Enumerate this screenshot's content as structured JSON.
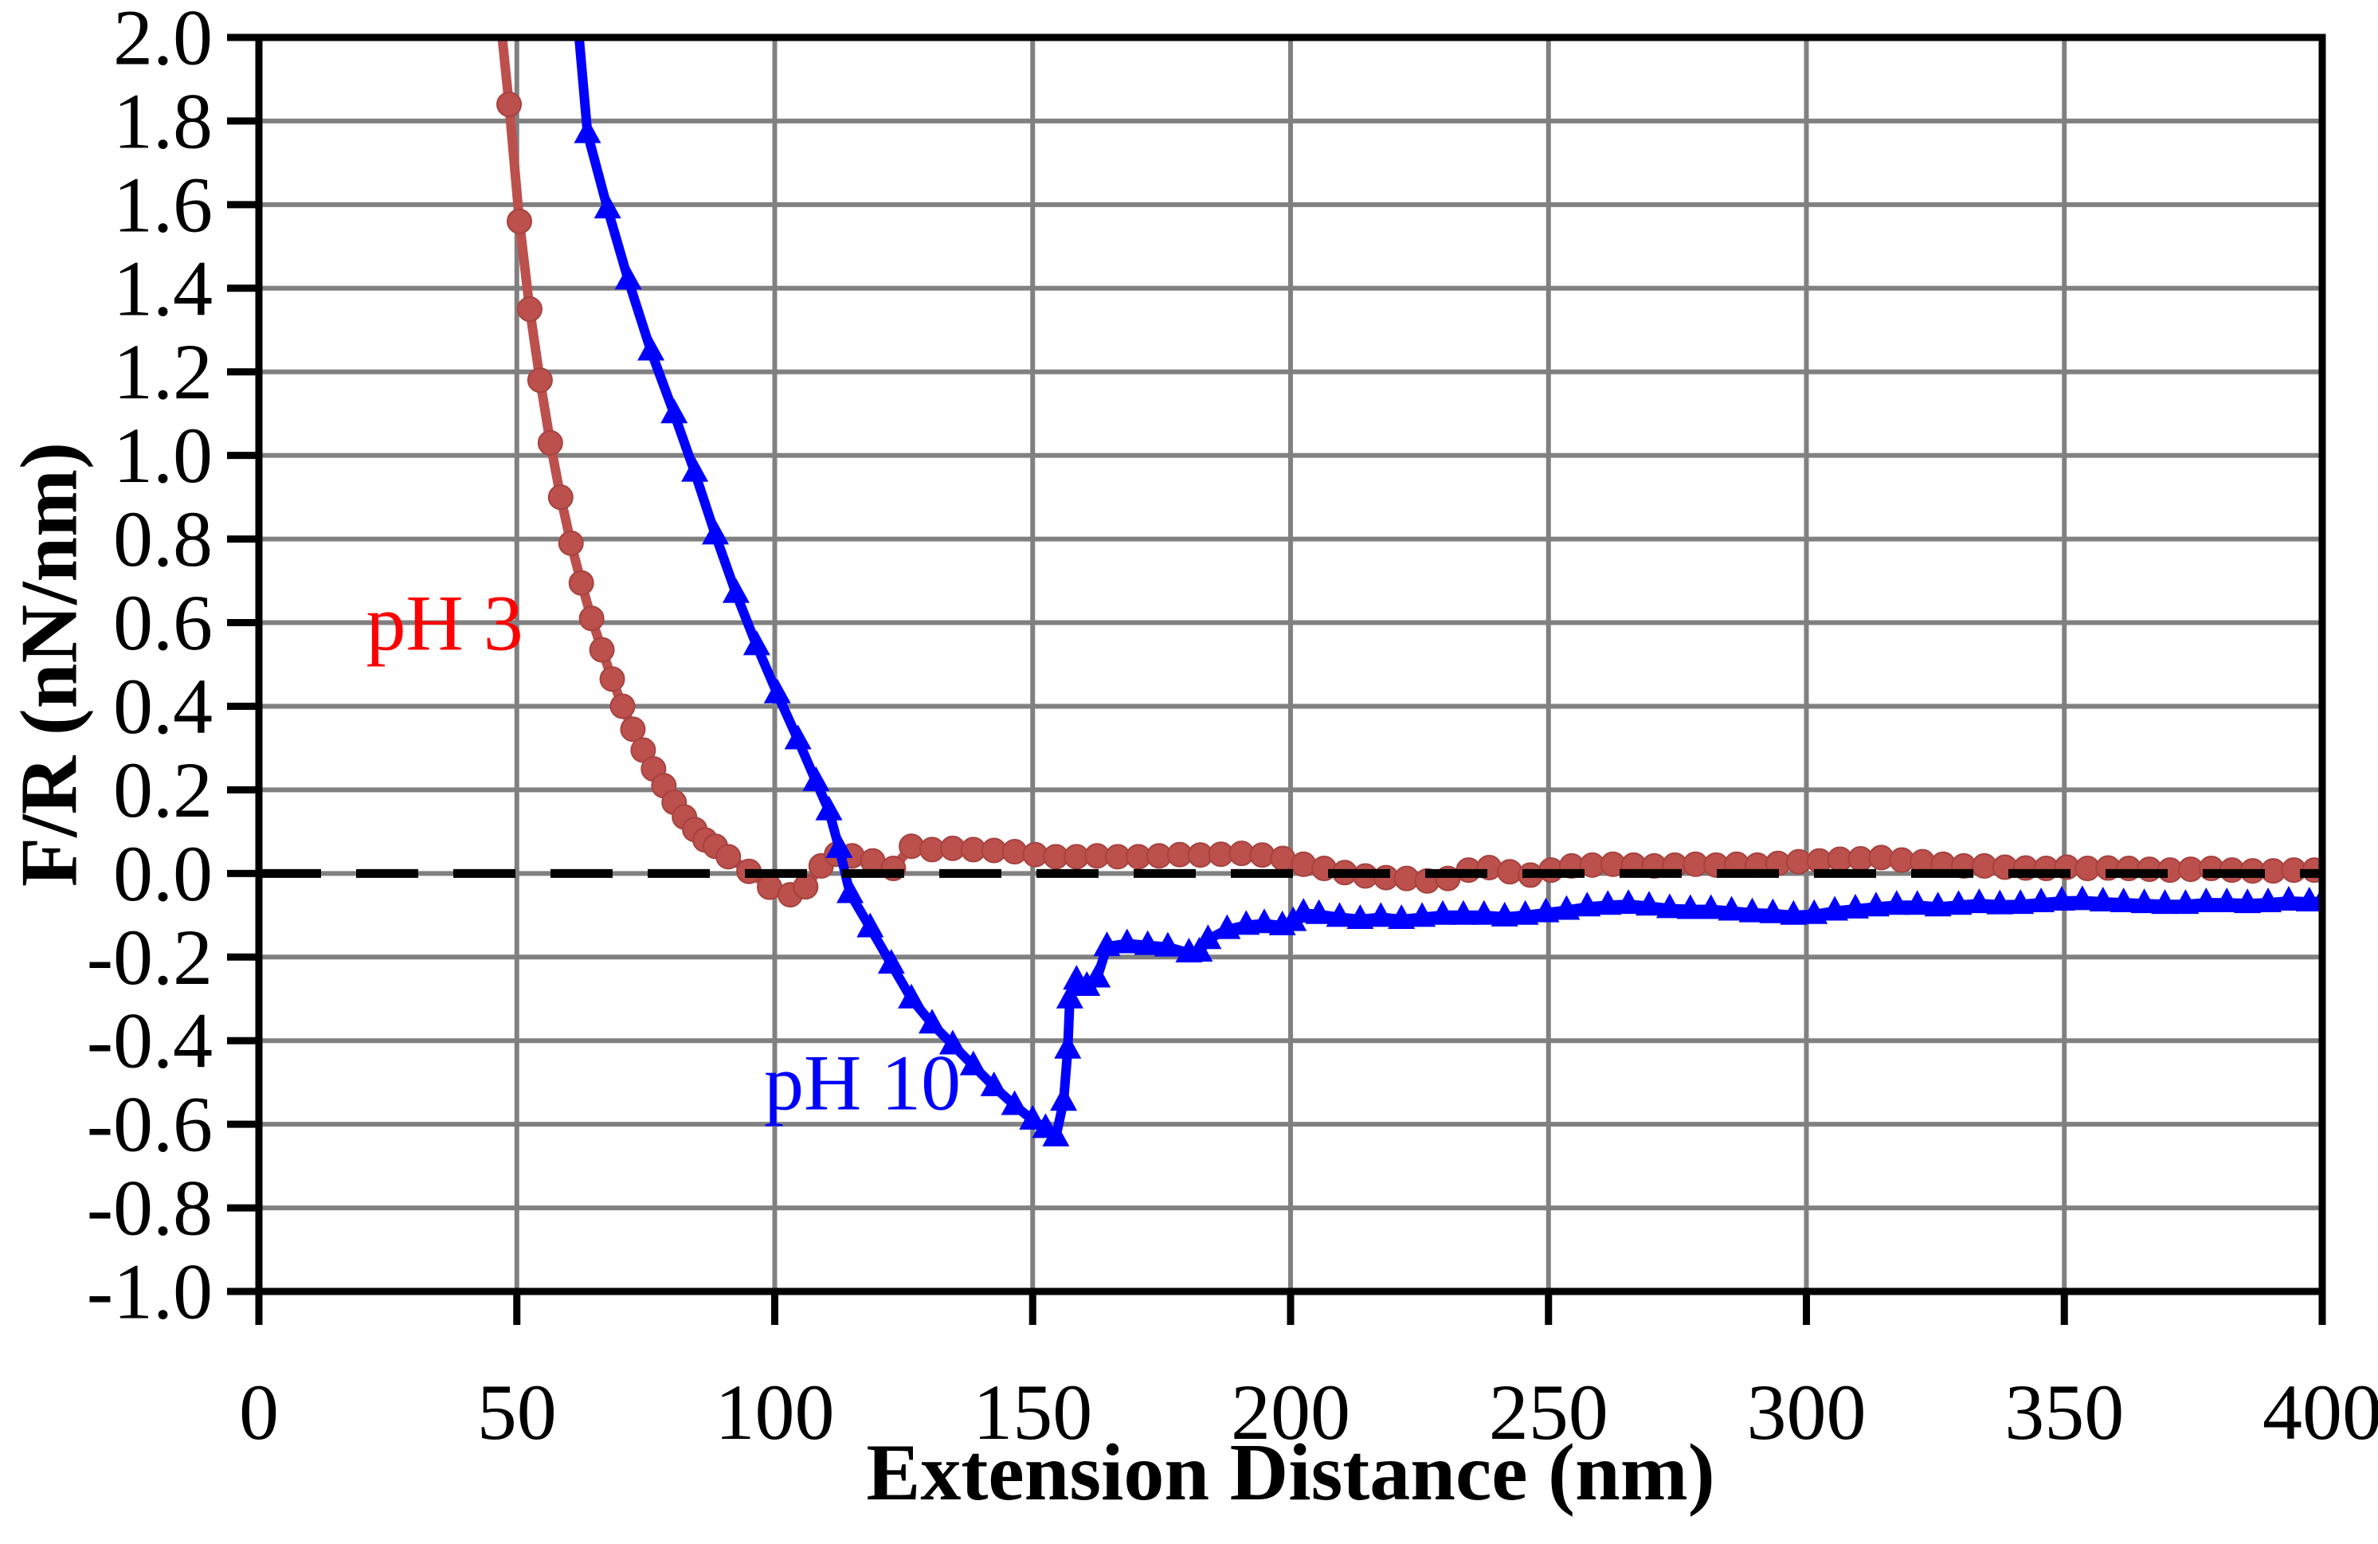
{
  "figure": {
    "background": "#FFFFFF",
    "plot_border_color": "#000000",
    "gridline_color": "#808080"
  },
  "chart_data": {
    "type": "line",
    "title": "",
    "xlabel": "Extension Distance (nm)",
    "ylabel": "F/R (nN/nm)",
    "xlim": [
      0,
      400
    ],
    "ylim": [
      -1.0,
      2.0
    ],
    "grid": true,
    "legend_position": "none",
    "zero_line": {
      "y": 0.0,
      "style": "dashed",
      "color": "#000000"
    },
    "xticks": [
      {
        "v": 0,
        "label": "0"
      },
      {
        "v": 50,
        "label": "50"
      },
      {
        "v": 100,
        "label": "100"
      },
      {
        "v": 150,
        "label": "150"
      },
      {
        "v": 200,
        "label": "200"
      },
      {
        "v": 250,
        "label": "250"
      },
      {
        "v": 300,
        "label": "300"
      },
      {
        "v": 350,
        "label": "350"
      },
      {
        "v": 400,
        "label": "400"
      }
    ],
    "yticks": [
      {
        "v": 2.0,
        "label": "2.0"
      },
      {
        "v": 1.8,
        "label": "1.8"
      },
      {
        "v": 1.6,
        "label": "1.6"
      },
      {
        "v": 1.4,
        "label": "1.4"
      },
      {
        "v": 1.2,
        "label": "1.2"
      },
      {
        "v": 1.0,
        "label": "1.0"
      },
      {
        "v": 0.8,
        "label": "0.8"
      },
      {
        "v": 0.6,
        "label": "0.6"
      },
      {
        "v": 0.4,
        "label": "0.4"
      },
      {
        "v": 0.2,
        "label": "0.2"
      },
      {
        "v": 0.0,
        "label": "0.0"
      },
      {
        "v": -0.2,
        "label": "-0.2"
      },
      {
        "v": -0.4,
        "label": "-0.4"
      },
      {
        "v": -0.6,
        "label": "-0.6"
      },
      {
        "v": -0.8,
        "label": "-0.8"
      },
      {
        "v": -1.0,
        "label": "-1.0"
      }
    ],
    "annotations": [
      {
        "text": "pH 3",
        "x": 36,
        "y": 0.6,
        "color": "#FF0000"
      },
      {
        "text": "pH 10",
        "x": 117,
        "y": -0.5,
        "color": "#0000FE"
      }
    ],
    "series": [
      {
        "name": "pH 3",
        "color": "#BC504D",
        "marker": "circle",
        "points": [
          [
            46.5,
            2.08
          ],
          [
            48.5,
            1.84
          ],
          [
            50.5,
            1.56
          ],
          [
            52.5,
            1.35
          ],
          [
            54.5,
            1.18
          ],
          [
            56.5,
            1.03
          ],
          [
            58.5,
            0.9
          ],
          [
            60.5,
            0.79
          ],
          [
            62.5,
            0.695
          ],
          [
            64.5,
            0.61
          ],
          [
            66.5,
            0.535
          ],
          [
            68.5,
            0.465
          ],
          [
            70.5,
            0.4
          ],
          [
            72.5,
            0.345
          ],
          [
            74.5,
            0.295
          ],
          [
            76.5,
            0.25
          ],
          [
            78.5,
            0.21
          ],
          [
            80.5,
            0.17
          ],
          [
            82.5,
            0.135
          ],
          [
            84.5,
            0.105
          ],
          [
            86.5,
            0.08
          ],
          [
            88.5,
            0.065
          ],
          [
            91,
            0.04
          ],
          [
            95,
            0.005
          ],
          [
            99,
            -0.033
          ],
          [
            103,
            -0.051
          ],
          [
            106,
            -0.032
          ],
          [
            109,
            0.018
          ],
          [
            112,
            0.046
          ],
          [
            115,
            0.042
          ],
          [
            119,
            0.03
          ],
          [
            123,
            0.012
          ],
          [
            126.5,
            0.065
          ],
          [
            130.5,
            0.057
          ],
          [
            134.5,
            0.06
          ],
          [
            138.5,
            0.057
          ],
          [
            142.5,
            0.055
          ],
          [
            146.5,
            0.052
          ],
          [
            150.5,
            0.045
          ],
          [
            154.5,
            0.04
          ],
          [
            158.5,
            0.04
          ],
          [
            162.5,
            0.042
          ],
          [
            166.5,
            0.04
          ],
          [
            170.5,
            0.04
          ],
          [
            174.5,
            0.042
          ],
          [
            178.5,
            0.045
          ],
          [
            182.5,
            0.044
          ],
          [
            186.5,
            0.046
          ],
          [
            190.5,
            0.048
          ],
          [
            194.5,
            0.044
          ],
          [
            198.5,
            0.036
          ],
          [
            202.5,
            0.022
          ],
          [
            206.5,
            0.012
          ],
          [
            210.5,
            0.002
          ],
          [
            214.5,
            -0.006
          ],
          [
            218.5,
            -0.01
          ],
          [
            222.5,
            -0.012
          ],
          [
            226.5,
            -0.018
          ],
          [
            230.5,
            -0.012
          ],
          [
            234.5,
            0.008
          ],
          [
            238.5,
            0.014
          ],
          [
            242.5,
            0.004
          ],
          [
            246.5,
            -0.004
          ],
          [
            250.5,
            0.008
          ],
          [
            254.5,
            0.018
          ],
          [
            258.5,
            0.02
          ],
          [
            262.5,
            0.022
          ],
          [
            266.5,
            0.02
          ],
          [
            270.5,
            0.018
          ],
          [
            274.5,
            0.02
          ],
          [
            278.5,
            0.022
          ],
          [
            282.5,
            0.02
          ],
          [
            286.5,
            0.022
          ],
          [
            290.5,
            0.02
          ],
          [
            294.5,
            0.024
          ],
          [
            298.5,
            0.028
          ],
          [
            302.5,
            0.03
          ],
          [
            306.5,
            0.034
          ],
          [
            310.5,
            0.035
          ],
          [
            314.5,
            0.038
          ],
          [
            318.5,
            0.032
          ],
          [
            322.5,
            0.028
          ],
          [
            326.5,
            0.022
          ],
          [
            330.5,
            0.018
          ],
          [
            334.5,
            0.018
          ],
          [
            338.5,
            0.015
          ],
          [
            342.5,
            0.013
          ],
          [
            346.5,
            0.012
          ],
          [
            350.5,
            0.015
          ],
          [
            354.5,
            0.012
          ],
          [
            358.5,
            0.013
          ],
          [
            362.5,
            0.012
          ],
          [
            366.5,
            0.01
          ],
          [
            370.5,
            0.008
          ],
          [
            374.5,
            0.01
          ],
          [
            378.5,
            0.012
          ],
          [
            382.5,
            0.008
          ],
          [
            386.5,
            0.006
          ],
          [
            390.5,
            0.006
          ],
          [
            394.5,
            0.008
          ],
          [
            398.5,
            0.008
          ]
        ]
      },
      {
        "name": "pH 10",
        "color": "#0000FE",
        "marker": "triangle-up",
        "points": [
          [
            61.5,
            2.08
          ],
          [
            63.7,
            1.77
          ],
          [
            67.6,
            1.59
          ],
          [
            71.6,
            1.42
          ],
          [
            76,
            1.25
          ],
          [
            80.5,
            1.1
          ],
          [
            84.5,
            0.96
          ],
          [
            88.5,
            0.81
          ],
          [
            92.5,
            0.67
          ],
          [
            96.5,
            0.545
          ],
          [
            100.5,
            0.43
          ],
          [
            104.5,
            0.32
          ],
          [
            108,
            0.22
          ],
          [
            110.5,
            0.15
          ],
          [
            112.5,
            0.06
          ],
          [
            114.6,
            -0.048
          ],
          [
            118.5,
            -0.13
          ],
          [
            122.6,
            -0.217
          ],
          [
            126.5,
            -0.3
          ],
          [
            130.5,
            -0.36
          ],
          [
            134.5,
            -0.41
          ],
          [
            138.5,
            -0.46
          ],
          [
            142.5,
            -0.51
          ],
          [
            146.5,
            -0.555
          ],
          [
            150,
            -0.59
          ],
          [
            152.5,
            -0.61
          ],
          [
            154.5,
            -0.63
          ],
          [
            156,
            -0.545
          ],
          [
            156.8,
            -0.42
          ],
          [
            157.2,
            -0.3
          ],
          [
            158.5,
            -0.255
          ],
          [
            160.5,
            -0.27
          ],
          [
            162.5,
            -0.25
          ],
          [
            164.4,
            -0.175
          ],
          [
            168.3,
            -0.168
          ],
          [
            172.3,
            -0.172
          ],
          [
            176.2,
            -0.176
          ],
          [
            180.3,
            -0.19
          ],
          [
            182.3,
            -0.188
          ],
          [
            184,
            -0.158
          ],
          [
            187.7,
            -0.134
          ],
          [
            191.4,
            -0.124
          ],
          [
            194.9,
            -0.12
          ],
          [
            198.4,
            -0.125
          ],
          [
            200.5,
            -0.115
          ],
          [
            202.5,
            -0.095
          ],
          [
            205.5,
            -0.098
          ],
          [
            209.5,
            -0.105
          ],
          [
            213.5,
            -0.11
          ],
          [
            217.5,
            -0.105
          ],
          [
            221.5,
            -0.11
          ],
          [
            225.5,
            -0.105
          ],
          [
            229.5,
            -0.1
          ],
          [
            233.5,
            -0.1
          ],
          [
            237.5,
            -0.1
          ],
          [
            241.5,
            -0.104
          ],
          [
            245.5,
            -0.1
          ],
          [
            249.5,
            -0.094
          ],
          [
            253.5,
            -0.088
          ],
          [
            257.5,
            -0.08
          ],
          [
            261.5,
            -0.076
          ],
          [
            265.5,
            -0.074
          ],
          [
            269.5,
            -0.078
          ],
          [
            273.5,
            -0.084
          ],
          [
            277.5,
            -0.086
          ],
          [
            281.5,
            -0.086
          ],
          [
            285.5,
            -0.09
          ],
          [
            289.5,
            -0.094
          ],
          [
            293.5,
            -0.096
          ],
          [
            297.5,
            -0.1
          ],
          [
            301.5,
            -0.098
          ],
          [
            305.5,
            -0.09
          ],
          [
            309.5,
            -0.085
          ],
          [
            313.5,
            -0.08
          ],
          [
            317.5,
            -0.076
          ],
          [
            321.5,
            -0.076
          ],
          [
            325.5,
            -0.08
          ],
          [
            329.5,
            -0.076
          ],
          [
            333.5,
            -0.072
          ],
          [
            337.5,
            -0.075
          ],
          [
            341.5,
            -0.074
          ],
          [
            345.5,
            -0.07
          ],
          [
            349.5,
            -0.066
          ],
          [
            353.5,
            -0.065
          ],
          [
            357.5,
            -0.068
          ],
          [
            361.5,
            -0.07
          ],
          [
            365.5,
            -0.072
          ],
          [
            369.5,
            -0.074
          ],
          [
            373.5,
            -0.074
          ],
          [
            377.5,
            -0.07
          ],
          [
            381.5,
            -0.07
          ],
          [
            385.5,
            -0.072
          ],
          [
            389.5,
            -0.07
          ],
          [
            393.5,
            -0.066
          ],
          [
            397.5,
            -0.068
          ],
          [
            400,
            -0.067
          ]
        ]
      }
    ]
  }
}
